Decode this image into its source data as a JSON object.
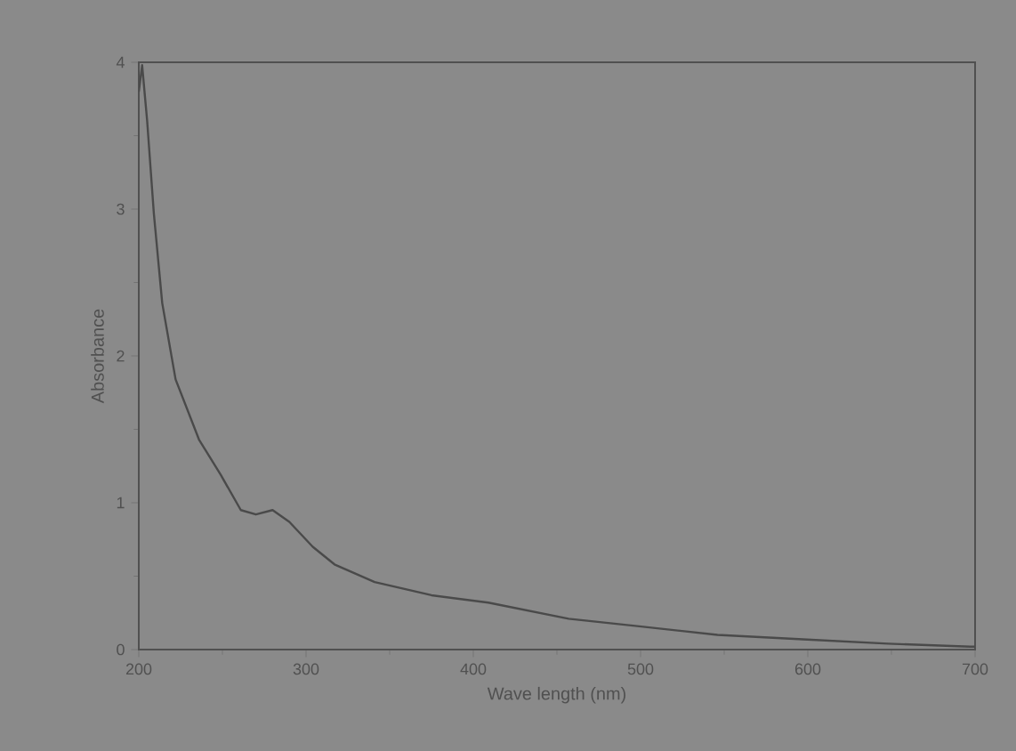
{
  "chart_data": {
    "type": "line",
    "xlabel": "Wave length (nm)",
    "ylabel": "Absorbance",
    "x": [
      200,
      202,
      205,
      209,
      214,
      222,
      236,
      249,
      261,
      270,
      280,
      290,
      304,
      317,
      341,
      375,
      409,
      457,
      498,
      546,
      597,
      648,
      697,
      700
    ],
    "series": [
      {
        "color": "#4a4a4a",
        "values": [
          3.8,
          3.98,
          3.6,
          2.97,
          2.36,
          1.84,
          1.43,
          1.19,
          0.95,
          0.92,
          0.95,
          0.87,
          0.7,
          0.58,
          0.46,
          0.37,
          0.32,
          0.21,
          0.16,
          0.1,
          0.07,
          0.04,
          0.02,
          0.02
        ]
      }
    ],
    "xlim": [
      200,
      700
    ],
    "ylim": [
      0,
      4
    ],
    "xticks": [
      200,
      300,
      400,
      500,
      600,
      700
    ],
    "yticks": [
      0,
      1,
      2,
      3,
      4
    ],
    "grid": false,
    "marker": "none",
    "line_style": "solid"
  }
}
